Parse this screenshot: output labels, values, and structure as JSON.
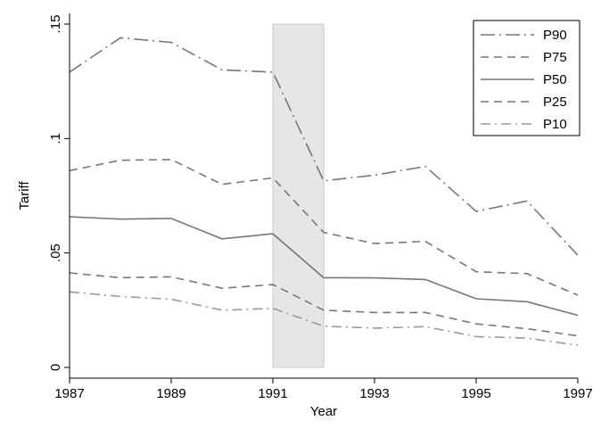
{
  "chart_data": {
    "type": "line",
    "title": "",
    "xlabel": "Year",
    "ylabel": "Tariff",
    "xlim": [
      1987,
      1997
    ],
    "ylim": [
      0,
      0.15
    ],
    "x_ticks": [
      1987,
      1989,
      1991,
      1993,
      1995,
      1997
    ],
    "x_tick_labels": [
      "1987",
      "1989",
      "1991",
      "1993",
      "1995",
      "1997"
    ],
    "y_ticks": [
      0,
      0.05,
      0.1,
      0.15
    ],
    "y_tick_labels": [
      "0",
      ".05",
      ".1",
      ".15"
    ],
    "shaded_region": {
      "x_start": 1991,
      "x_end": 1992,
      "y_start": 0,
      "y_end": 0.15
    },
    "legend_position": "top-right",
    "grid": false,
    "x": [
      1987,
      1988,
      1989,
      1990,
      1991,
      1992,
      1993,
      1994,
      1995,
      1996,
      1997
    ],
    "series": [
      {
        "name": "P90",
        "dash": "long-dash-dot",
        "color": "#777777",
        "values": [
          0.129,
          0.144,
          0.142,
          0.13,
          0.129,
          0.0815,
          0.084,
          0.0878,
          0.0682,
          0.0727,
          0.049
        ]
      },
      {
        "name": "P75",
        "dash": "dash",
        "color": "#777777",
        "values": [
          0.086,
          0.0905,
          0.0908,
          0.08,
          0.0828,
          0.059,
          0.0541,
          0.0551,
          0.0418,
          0.041,
          0.0316
        ]
      },
      {
        "name": "P50",
        "dash": "solid",
        "color": "#777777",
        "values": [
          0.0658,
          0.0648,
          0.0651,
          0.0562,
          0.0584,
          0.0392,
          0.0391,
          0.0384,
          0.03,
          0.0287,
          0.0228
        ]
      },
      {
        "name": "P25",
        "dash": "dash",
        "color": "#777777",
        "values": [
          0.0413,
          0.0392,
          0.0396,
          0.0346,
          0.0362,
          0.025,
          0.024,
          0.024,
          0.019,
          0.0169,
          0.0138
        ]
      },
      {
        "name": "P10",
        "dash": "dash-dot",
        "color": "#999999",
        "values": [
          0.033,
          0.031,
          0.0298,
          0.025,
          0.0258,
          0.018,
          0.0172,
          0.0178,
          0.0135,
          0.0128,
          0.0097
        ]
      }
    ]
  }
}
